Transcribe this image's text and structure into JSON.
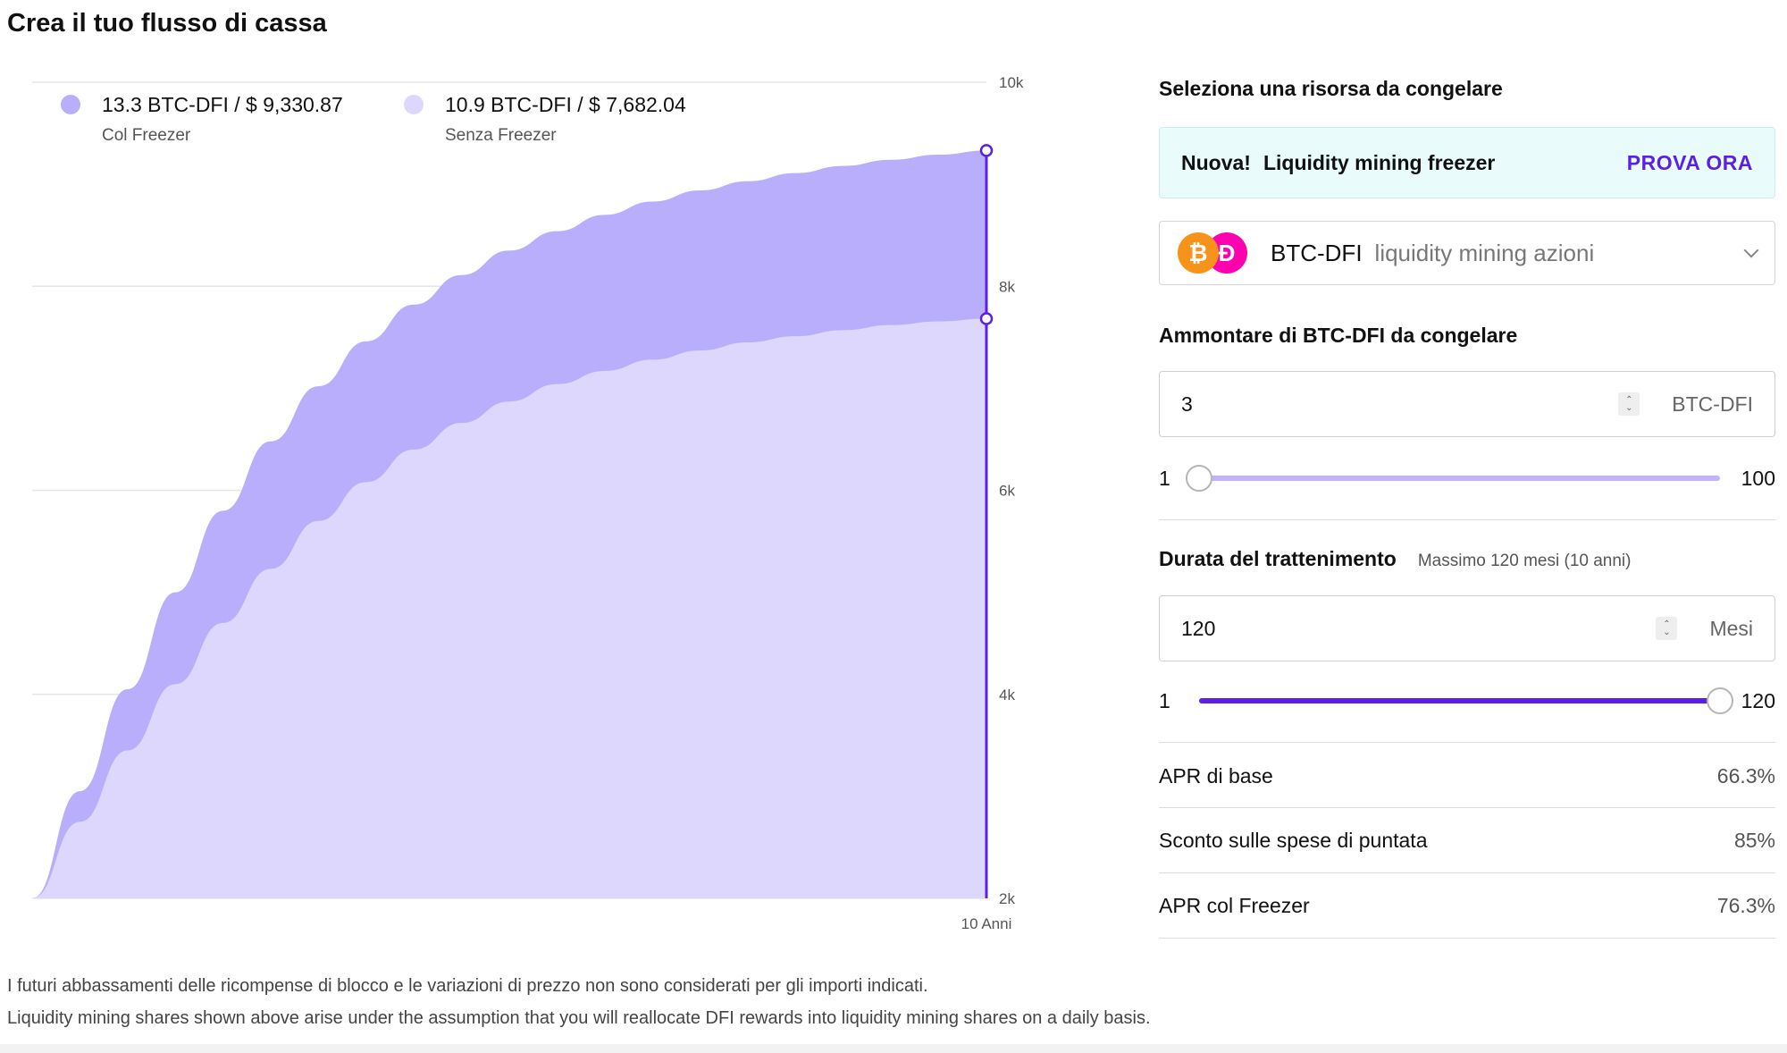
{
  "page": {
    "title": "Crea il tuo flusso di cassa"
  },
  "legend": [
    {
      "value": "13.3 BTC-DFI / $ 9,330.87",
      "label": "Col Freezer",
      "color": "#b9aefc"
    },
    {
      "value": "10.9 BTC-DFI / $ 7,682.04",
      "label": "Senza Freezer",
      "color": "#ddd7fe"
    }
  ],
  "chart_data": {
    "type": "area",
    "title": "",
    "xlabel": "",
    "ylabel": "",
    "x_end_label": "10 Anni",
    "ylim": [
      2000,
      10000
    ],
    "y_ticks": [
      "2k",
      "4k",
      "6k",
      "8k",
      "10k"
    ],
    "y_tick_values": [
      2000,
      4000,
      6000,
      8000,
      10000
    ],
    "x": [
      0,
      0.5,
      1,
      1.5,
      2,
      2.5,
      3,
      3.5,
      4,
      4.5,
      5,
      5.5,
      6,
      6.5,
      7,
      7.5,
      8,
      8.5,
      9,
      9.5,
      10
    ],
    "series": [
      {
        "name": "Col Freezer",
        "color": "#b9aefc",
        "values": [
          2000,
          3050,
          4050,
          5000,
          5800,
          6480,
          7020,
          7460,
          7820,
          8110,
          8350,
          8540,
          8700,
          8830,
          8940,
          9030,
          9110,
          9180,
          9240,
          9290,
          9330.87
        ]
      },
      {
        "name": "Senza Freezer",
        "color": "#ddd7fe",
        "values": [
          2000,
          2750,
          3450,
          4100,
          4700,
          5230,
          5700,
          6080,
          6400,
          6660,
          6870,
          7040,
          7170,
          7280,
          7370,
          7450,
          7510,
          7570,
          7620,
          7655,
          7682.04
        ]
      }
    ],
    "marker_color": "#5b20e6",
    "grid": true
  },
  "panel": {
    "select_label": "Seleziona una risorsa da congelare",
    "promo": {
      "badge": "Nuova!",
      "title": "Liquidity mining freezer",
      "cta": "PROVA ORA"
    },
    "asset": {
      "pair": "BTC-DFI",
      "kind": "liquidity mining azioni",
      "icons": [
        "bitcoin-icon",
        "defichain-icon"
      ]
    },
    "amount_label": "Ammontare di BTC-DFI da congelare",
    "amount": {
      "value": "3",
      "unit": "BTC-DFI",
      "min": "1",
      "max": "100",
      "fraction": 0.0
    },
    "duration_label": "Durata del trattenimento",
    "duration_hint": "Massimo 120 mesi (10 anni)",
    "duration": {
      "value": "120",
      "unit": "Mesi",
      "min": "1",
      "max": "120",
      "fraction": 1.0
    },
    "stats": [
      {
        "label": "APR di base",
        "value": "66.3%"
      },
      {
        "label": "Sconto sulle spese di puntata",
        "value": "85%"
      },
      {
        "label": "APR col Freezer",
        "value": "76.3%"
      }
    ]
  },
  "footnotes": [
    "I futuri abbassamenti delle ricompense di blocco e le variazioni di prezzo non sono considerati per gli importi indicati.",
    "Liquidity mining shares shown above arise under the assumption that you will reallocate DFI rewards into liquidity mining shares on a daily basis."
  ],
  "colors": {
    "accent": "#5b20e6",
    "slider_light": "#c4b3fb",
    "promo_bg": "#e9fbfb"
  }
}
